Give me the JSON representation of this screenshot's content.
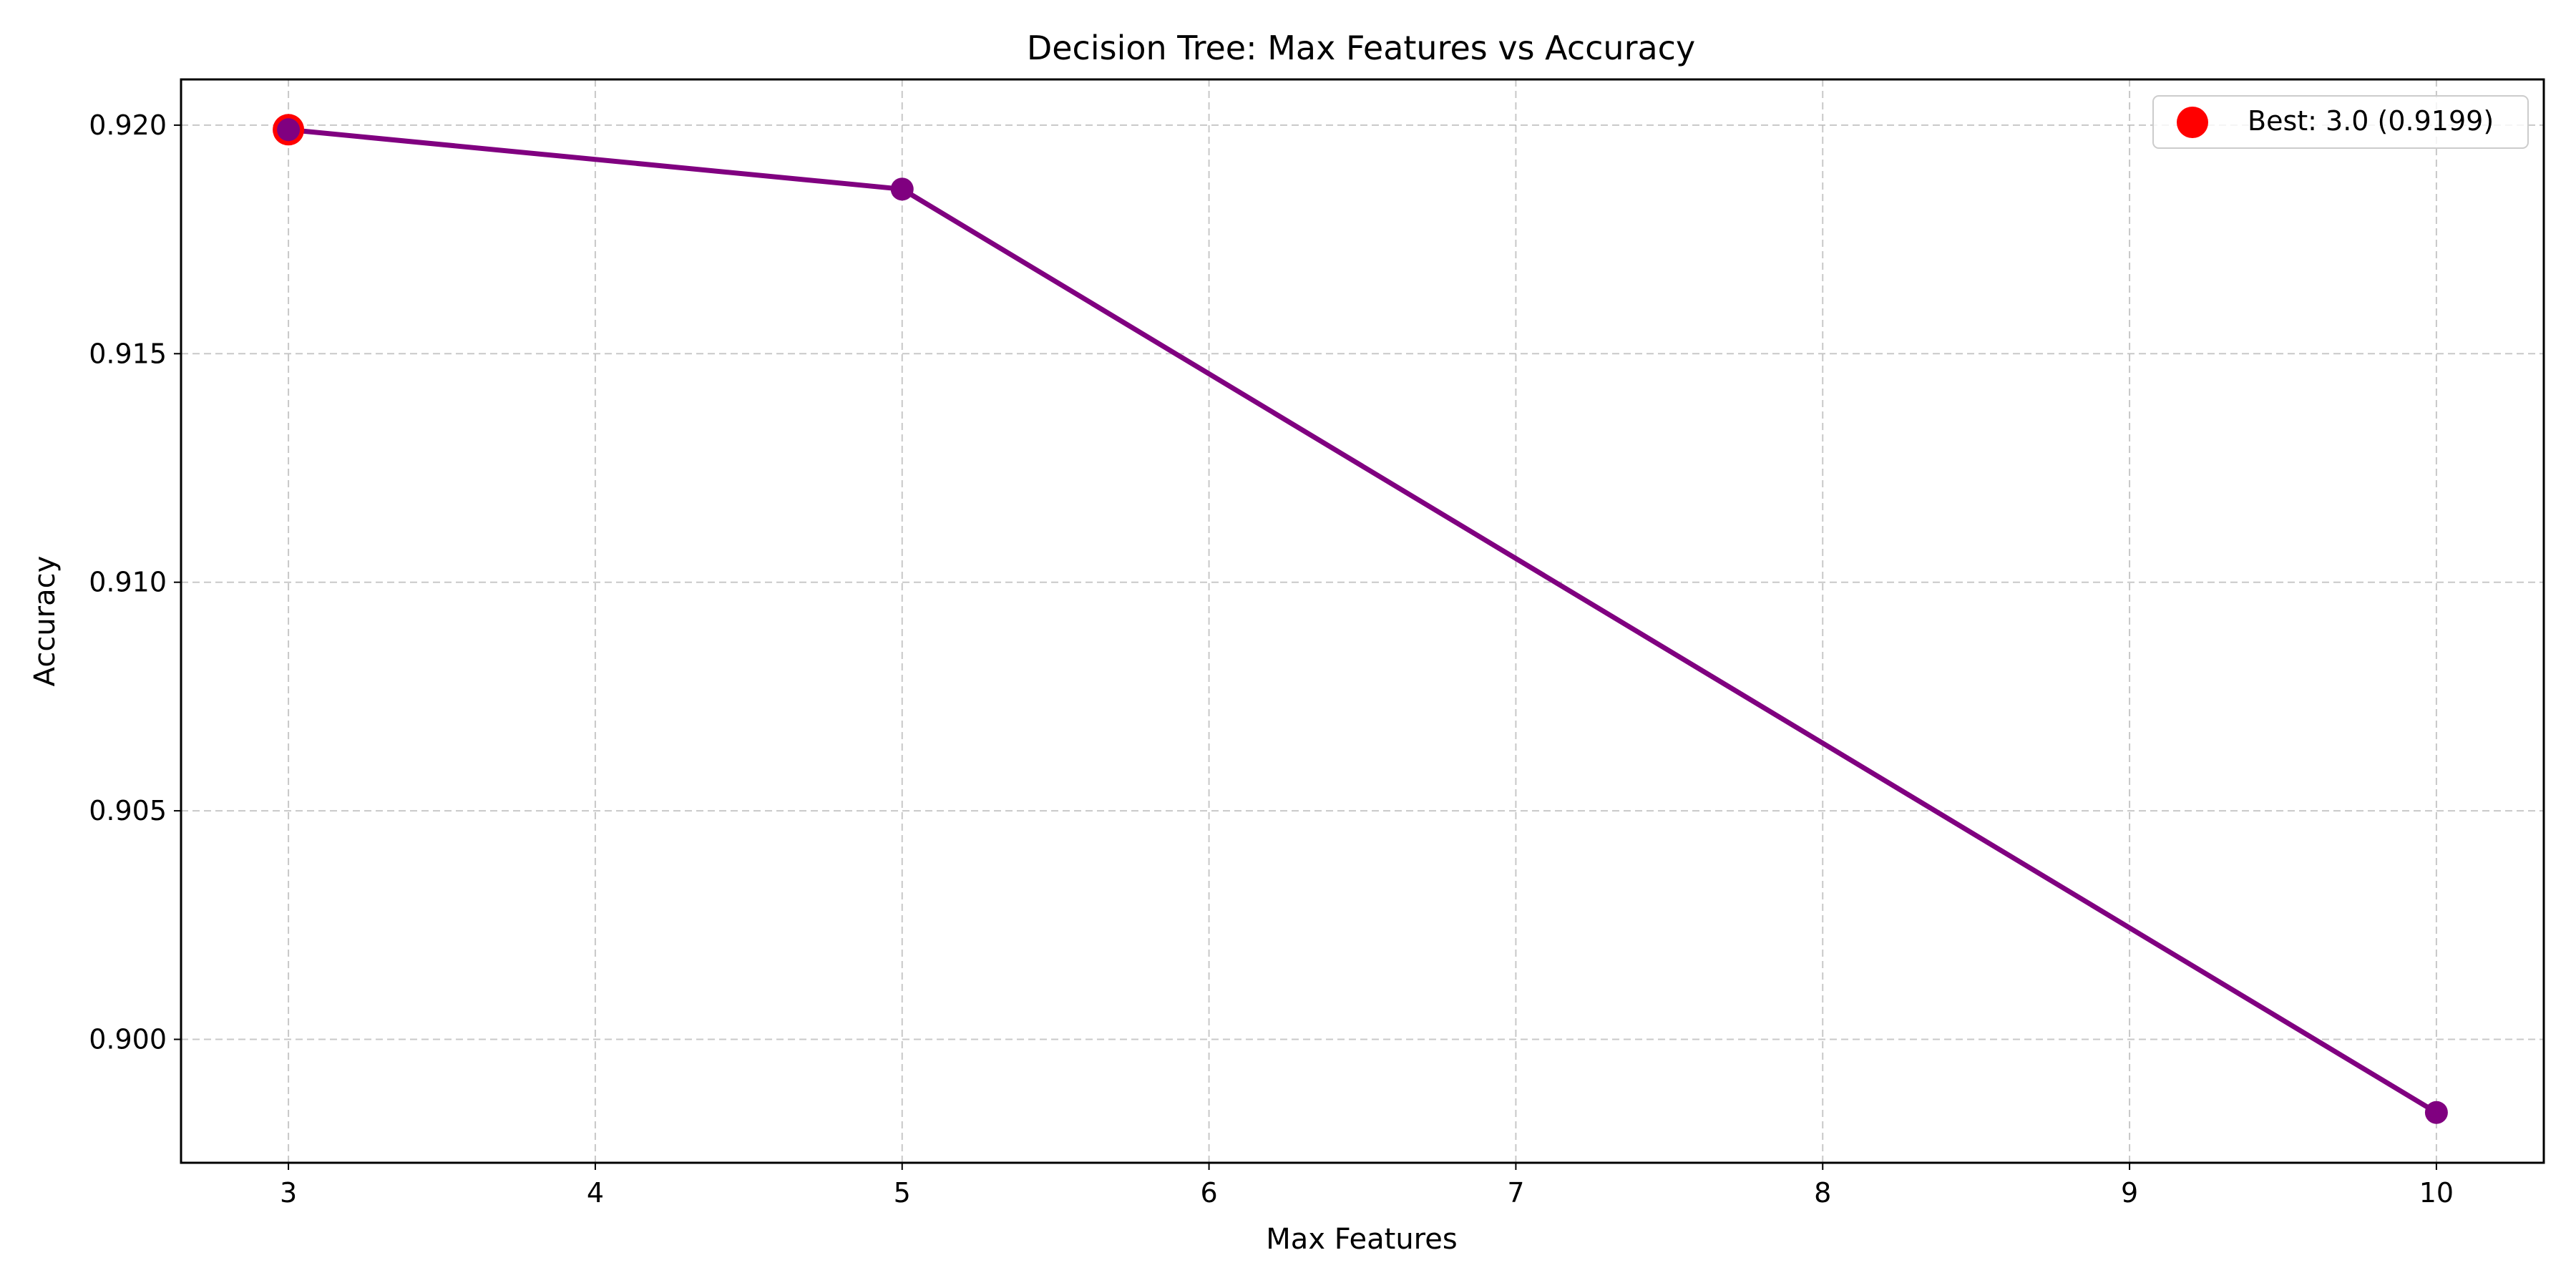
{
  "chart_data": {
    "type": "line",
    "title": "Decision Tree: Max Features vs Accuracy",
    "xlabel": "Max Features",
    "ylabel": "Accuracy",
    "xlim": [
      2.65,
      10.35
    ],
    "ylim": [
      0.8973,
      0.921
    ],
    "xticks": [
      3,
      4,
      5,
      6,
      7,
      8,
      9,
      10
    ],
    "xtick_labels": [
      "3",
      "4",
      "5",
      "6",
      "7",
      "8",
      "9",
      "10"
    ],
    "yticks": [
      0.9,
      0.905,
      0.91,
      0.915,
      0.92
    ],
    "ytick_labels": [
      "0.900",
      "0.905",
      "0.910",
      "0.915",
      "0.920"
    ],
    "grid": true,
    "series": [
      {
        "x": [
          3,
          5,
          10
        ],
        "y": [
          0.9199,
          0.9186,
          0.8984
        ],
        "color": "#800080",
        "marker": "circle"
      }
    ],
    "best_point": {
      "x": 3,
      "y": 0.9199,
      "color": "#ff0000"
    },
    "legend": {
      "position": "top-right",
      "entries": [
        {
          "label": "Best: 3.0 (0.9199)",
          "color": "#ff0000",
          "marker": "circle"
        }
      ]
    }
  }
}
